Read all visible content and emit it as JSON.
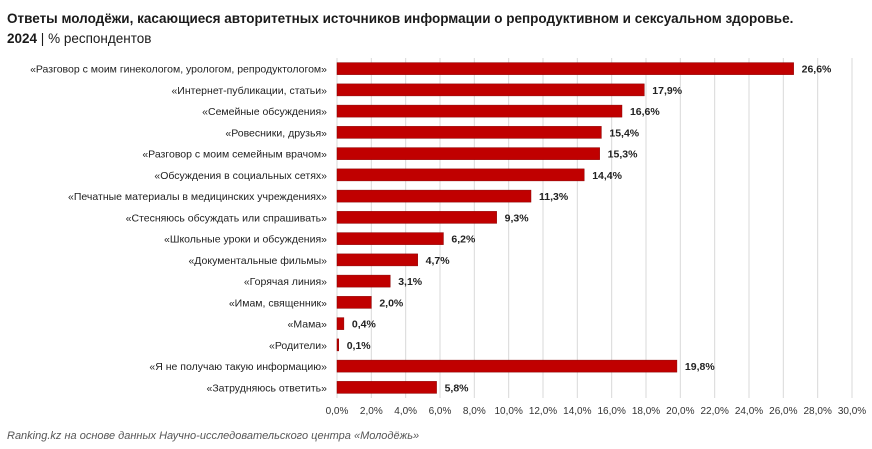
{
  "title": {
    "line1": "Ответы молодёжи, касающиеся авторитетных источников информации о репродуктивном и сексуальном здоровье.",
    "year": "2024",
    "separator": " | ",
    "unit": "% респондентов"
  },
  "footer": "Ranking.kz на основе данных Научно-исследовательского центра «Молодёжь»",
  "colors": {
    "bar": "#c00000",
    "bar_edge": "#8a0000",
    "grid": "#d9d9d9",
    "text": "#222222"
  },
  "chart_data": {
    "type": "bar",
    "orientation": "horizontal",
    "categories": [
      "«Разговор с моим гинекологом, урологом, репродуктологом»",
      "«Интернет-публикации, статьи»",
      "«Семейные обсуждения»",
      "«Ровесники, друзья»",
      "«Разговор с моим семейным врачом»",
      "«Обсуждения в социальных сетях»",
      "«Печатные материалы в медицинских учреждениях»",
      "«Стесняюсь обсуждать или спрашивать»",
      "«Школьные уроки и обсуждения»",
      "«Документальные фильмы»",
      "«Горячая линия»",
      "«Имам, священник»",
      "«Мама»",
      "«Родители»",
      "«Я не получаю такую информацию»",
      "«Затрудняюсь ответить»"
    ],
    "values": [
      26.6,
      17.9,
      16.6,
      15.4,
      15.3,
      14.4,
      11.3,
      9.3,
      6.2,
      4.7,
      3.1,
      2.0,
      0.4,
      0.1,
      19.8,
      5.8
    ],
    "data_labels": [
      "26,6%",
      "17,9%",
      "16,6%",
      "15,4%",
      "15,3%",
      "14,4%",
      "11,3%",
      "9,3%",
      "6,2%",
      "4,7%",
      "3,1%",
      "2,0%",
      "0,4%",
      "0,1%",
      "19,8%",
      "5,8%"
    ],
    "x_ticks": [
      "0,0%",
      "2,0%",
      "4,0%",
      "6,0%",
      "8,0%",
      "10,0%",
      "12,0%",
      "14,0%",
      "16,0%",
      "18,0%",
      "20,0%",
      "22,0%",
      "24,0%",
      "26,0%",
      "28,0%",
      "30,0%"
    ],
    "xlim": [
      0,
      30
    ],
    "grid": "vertical",
    "legend": "none"
  }
}
